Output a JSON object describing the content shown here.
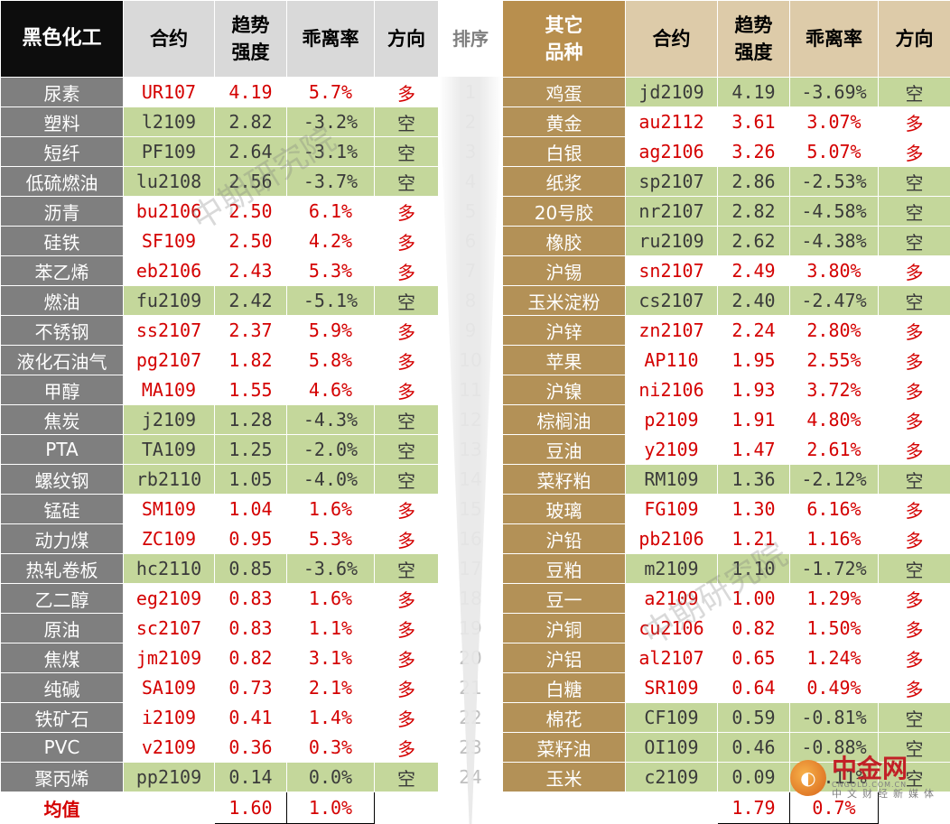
{
  "headers": {
    "left_section": "黑色化工",
    "contract": "合约",
    "trend_line1": "趋势",
    "trend_line2": "强度",
    "deviation": "乖离率",
    "direction": "方向",
    "rank": "排序",
    "right_section_line1": "其它",
    "right_section_line2": "品种"
  },
  "colors": {
    "long_text": "#d40000",
    "short_bg": "#c4d79b",
    "left_name_bg": "#7f7f7f",
    "right_name_bg": "#b39157"
  },
  "rows": [
    {
      "rank": "1",
      "l": {
        "name": "尿素",
        "contract": "UR107",
        "strength": "4.19",
        "deviation": "5.7%",
        "direction": "多"
      },
      "r": {
        "name": "鸡蛋",
        "contract": "jd2109",
        "strength": "4.19",
        "deviation": "-3.69%",
        "direction": "空"
      }
    },
    {
      "rank": "2",
      "l": {
        "name": "塑料",
        "contract": "l2109",
        "strength": "2.82",
        "deviation": "-3.2%",
        "direction": "空"
      },
      "r": {
        "name": "黄金",
        "contract": "au2112",
        "strength": "3.61",
        "deviation": "3.07%",
        "direction": "多"
      }
    },
    {
      "rank": "3",
      "l": {
        "name": "短纤",
        "contract": "PF109",
        "strength": "2.64",
        "deviation": "-3.1%",
        "direction": "空"
      },
      "r": {
        "name": "白银",
        "contract": "ag2106",
        "strength": "3.26",
        "deviation": "5.07%",
        "direction": "多"
      }
    },
    {
      "rank": "4",
      "l": {
        "name": "低硫燃油",
        "contract": "lu2108",
        "strength": "2.56",
        "deviation": "-3.7%",
        "direction": "空"
      },
      "r": {
        "name": "纸浆",
        "contract": "sp2107",
        "strength": "2.86",
        "deviation": "-2.53%",
        "direction": "空"
      }
    },
    {
      "rank": "5",
      "l": {
        "name": "沥青",
        "contract": "bu2106",
        "strength": "2.50",
        "deviation": "6.1%",
        "direction": "多"
      },
      "r": {
        "name": "20号胶",
        "contract": "nr2107",
        "strength": "2.82",
        "deviation": "-4.58%",
        "direction": "空"
      }
    },
    {
      "rank": "6",
      "l": {
        "name": "硅铁",
        "contract": "SF109",
        "strength": "2.50",
        "deviation": "4.2%",
        "direction": "多"
      },
      "r": {
        "name": "橡胶",
        "contract": "ru2109",
        "strength": "2.62",
        "deviation": "-4.38%",
        "direction": "空"
      }
    },
    {
      "rank": "7",
      "l": {
        "name": "苯乙烯",
        "contract": "eb2106",
        "strength": "2.43",
        "deviation": "5.3%",
        "direction": "多"
      },
      "r": {
        "name": "沪锡",
        "contract": "sn2107",
        "strength": "2.49",
        "deviation": "3.80%",
        "direction": "多"
      }
    },
    {
      "rank": "8",
      "l": {
        "name": "燃油",
        "contract": "fu2109",
        "strength": "2.42",
        "deviation": "-5.1%",
        "direction": "空"
      },
      "r": {
        "name": "玉米淀粉",
        "contract": "cs2107",
        "strength": "2.40",
        "deviation": "-2.47%",
        "direction": "空"
      }
    },
    {
      "rank": "9",
      "l": {
        "name": "不锈钢",
        "contract": "ss2107",
        "strength": "2.37",
        "deviation": "5.9%",
        "direction": "多"
      },
      "r": {
        "name": "沪锌",
        "contract": "zn2107",
        "strength": "2.24",
        "deviation": "2.80%",
        "direction": "多"
      }
    },
    {
      "rank": "10",
      "l": {
        "name": "液化石油气",
        "contract": "pg2107",
        "strength": "1.82",
        "deviation": "5.8%",
        "direction": "多"
      },
      "r": {
        "name": "苹果",
        "contract": "AP110",
        "strength": "1.95",
        "deviation": "2.55%",
        "direction": "多"
      }
    },
    {
      "rank": "11",
      "l": {
        "name": "甲醇",
        "contract": "MA109",
        "strength": "1.55",
        "deviation": "4.6%",
        "direction": "多"
      },
      "r": {
        "name": "沪镍",
        "contract": "ni2106",
        "strength": "1.93",
        "deviation": "3.72%",
        "direction": "多"
      }
    },
    {
      "rank": "12",
      "l": {
        "name": "焦炭",
        "contract": "j2109",
        "strength": "1.28",
        "deviation": "-4.3%",
        "direction": "空"
      },
      "r": {
        "name": "棕榈油",
        "contract": "p2109",
        "strength": "1.91",
        "deviation": "4.80%",
        "direction": "多"
      }
    },
    {
      "rank": "13",
      "l": {
        "name": "PTA",
        "contract": "TA109",
        "strength": "1.25",
        "deviation": "-2.0%",
        "direction": "空"
      },
      "r": {
        "name": "豆油",
        "contract": "y2109",
        "strength": "1.47",
        "deviation": "2.61%",
        "direction": "多"
      }
    },
    {
      "rank": "14",
      "l": {
        "name": "螺纹钢",
        "contract": "rb2110",
        "strength": "1.05",
        "deviation": "-4.0%",
        "direction": "空"
      },
      "r": {
        "name": "菜籽粕",
        "contract": "RM109",
        "strength": "1.36",
        "deviation": "-2.12%",
        "direction": "空"
      }
    },
    {
      "rank": "15",
      "l": {
        "name": "锰硅",
        "contract": "SM109",
        "strength": "1.04",
        "deviation": "1.6%",
        "direction": "多"
      },
      "r": {
        "name": "玻璃",
        "contract": "FG109",
        "strength": "1.30",
        "deviation": "6.16%",
        "direction": "多"
      }
    },
    {
      "rank": "16",
      "l": {
        "name": "动力煤",
        "contract": "ZC109",
        "strength": "0.95",
        "deviation": "5.3%",
        "direction": "多"
      },
      "r": {
        "name": "沪铅",
        "contract": "pb2106",
        "strength": "1.21",
        "deviation": "1.16%",
        "direction": "多"
      }
    },
    {
      "rank": "17",
      "l": {
        "name": "热轧卷板",
        "contract": "hc2110",
        "strength": "0.85",
        "deviation": "-3.6%",
        "direction": "空"
      },
      "r": {
        "name": "豆粕",
        "contract": "m2109",
        "strength": "1.10",
        "deviation": "-1.72%",
        "direction": "空"
      }
    },
    {
      "rank": "18",
      "l": {
        "name": "乙二醇",
        "contract": "eg2109",
        "strength": "0.83",
        "deviation": "1.6%",
        "direction": "多"
      },
      "r": {
        "name": "豆一",
        "contract": "a2109",
        "strength": "1.00",
        "deviation": "1.29%",
        "direction": "多"
      }
    },
    {
      "rank": "19",
      "l": {
        "name": "原油",
        "contract": "sc2107",
        "strength": "0.83",
        "deviation": "1.1%",
        "direction": "多"
      },
      "r": {
        "name": "沪铜",
        "contract": "cu2106",
        "strength": "0.82",
        "deviation": "1.50%",
        "direction": "多"
      }
    },
    {
      "rank": "20",
      "l": {
        "name": "焦煤",
        "contract": "jm2109",
        "strength": "0.82",
        "deviation": "3.1%",
        "direction": "多"
      },
      "r": {
        "name": "沪铝",
        "contract": "al2107",
        "strength": "0.65",
        "deviation": "1.24%",
        "direction": "多"
      }
    },
    {
      "rank": "21",
      "l": {
        "name": "纯碱",
        "contract": "SA109",
        "strength": "0.73",
        "deviation": "2.1%",
        "direction": "多"
      },
      "r": {
        "name": "白糖",
        "contract": "SR109",
        "strength": "0.64",
        "deviation": "0.49%",
        "direction": "多"
      }
    },
    {
      "rank": "22",
      "l": {
        "name": "铁矿石",
        "contract": "i2109",
        "strength": "0.41",
        "deviation": "1.4%",
        "direction": "多"
      },
      "r": {
        "name": "棉花",
        "contract": "CF109",
        "strength": "0.59",
        "deviation": "-0.81%",
        "direction": "空"
      }
    },
    {
      "rank": "23",
      "l": {
        "name": "PVC",
        "contract": "v2109",
        "strength": "0.36",
        "deviation": "0.3%",
        "direction": "多"
      },
      "r": {
        "name": "菜籽油",
        "contract": "OI109",
        "strength": "0.46",
        "deviation": "-0.88%",
        "direction": "空"
      }
    },
    {
      "rank": "24",
      "l": {
        "name": "聚丙烯",
        "contract": "pp2109",
        "strength": "0.14",
        "deviation": "0.0%",
        "direction": "空"
      },
      "r": {
        "name": "玉米",
        "contract": "c2109",
        "strength": "0.09",
        "deviation": "-1.11%",
        "direction": "空"
      }
    }
  ],
  "average": {
    "label": "均值",
    "left_strength": "1.60",
    "left_deviation": "1.0%",
    "right_strength": "1.79",
    "right_deviation": "0.7%"
  },
  "watermarks": [
    "中期研究院",
    "中期研究院"
  ],
  "logo": {
    "icon": "cngold-logo-icon",
    "main": "中金网",
    "sub": "CNGOLD.COM.CN",
    "sub2": "中文财经新媒体"
  }
}
